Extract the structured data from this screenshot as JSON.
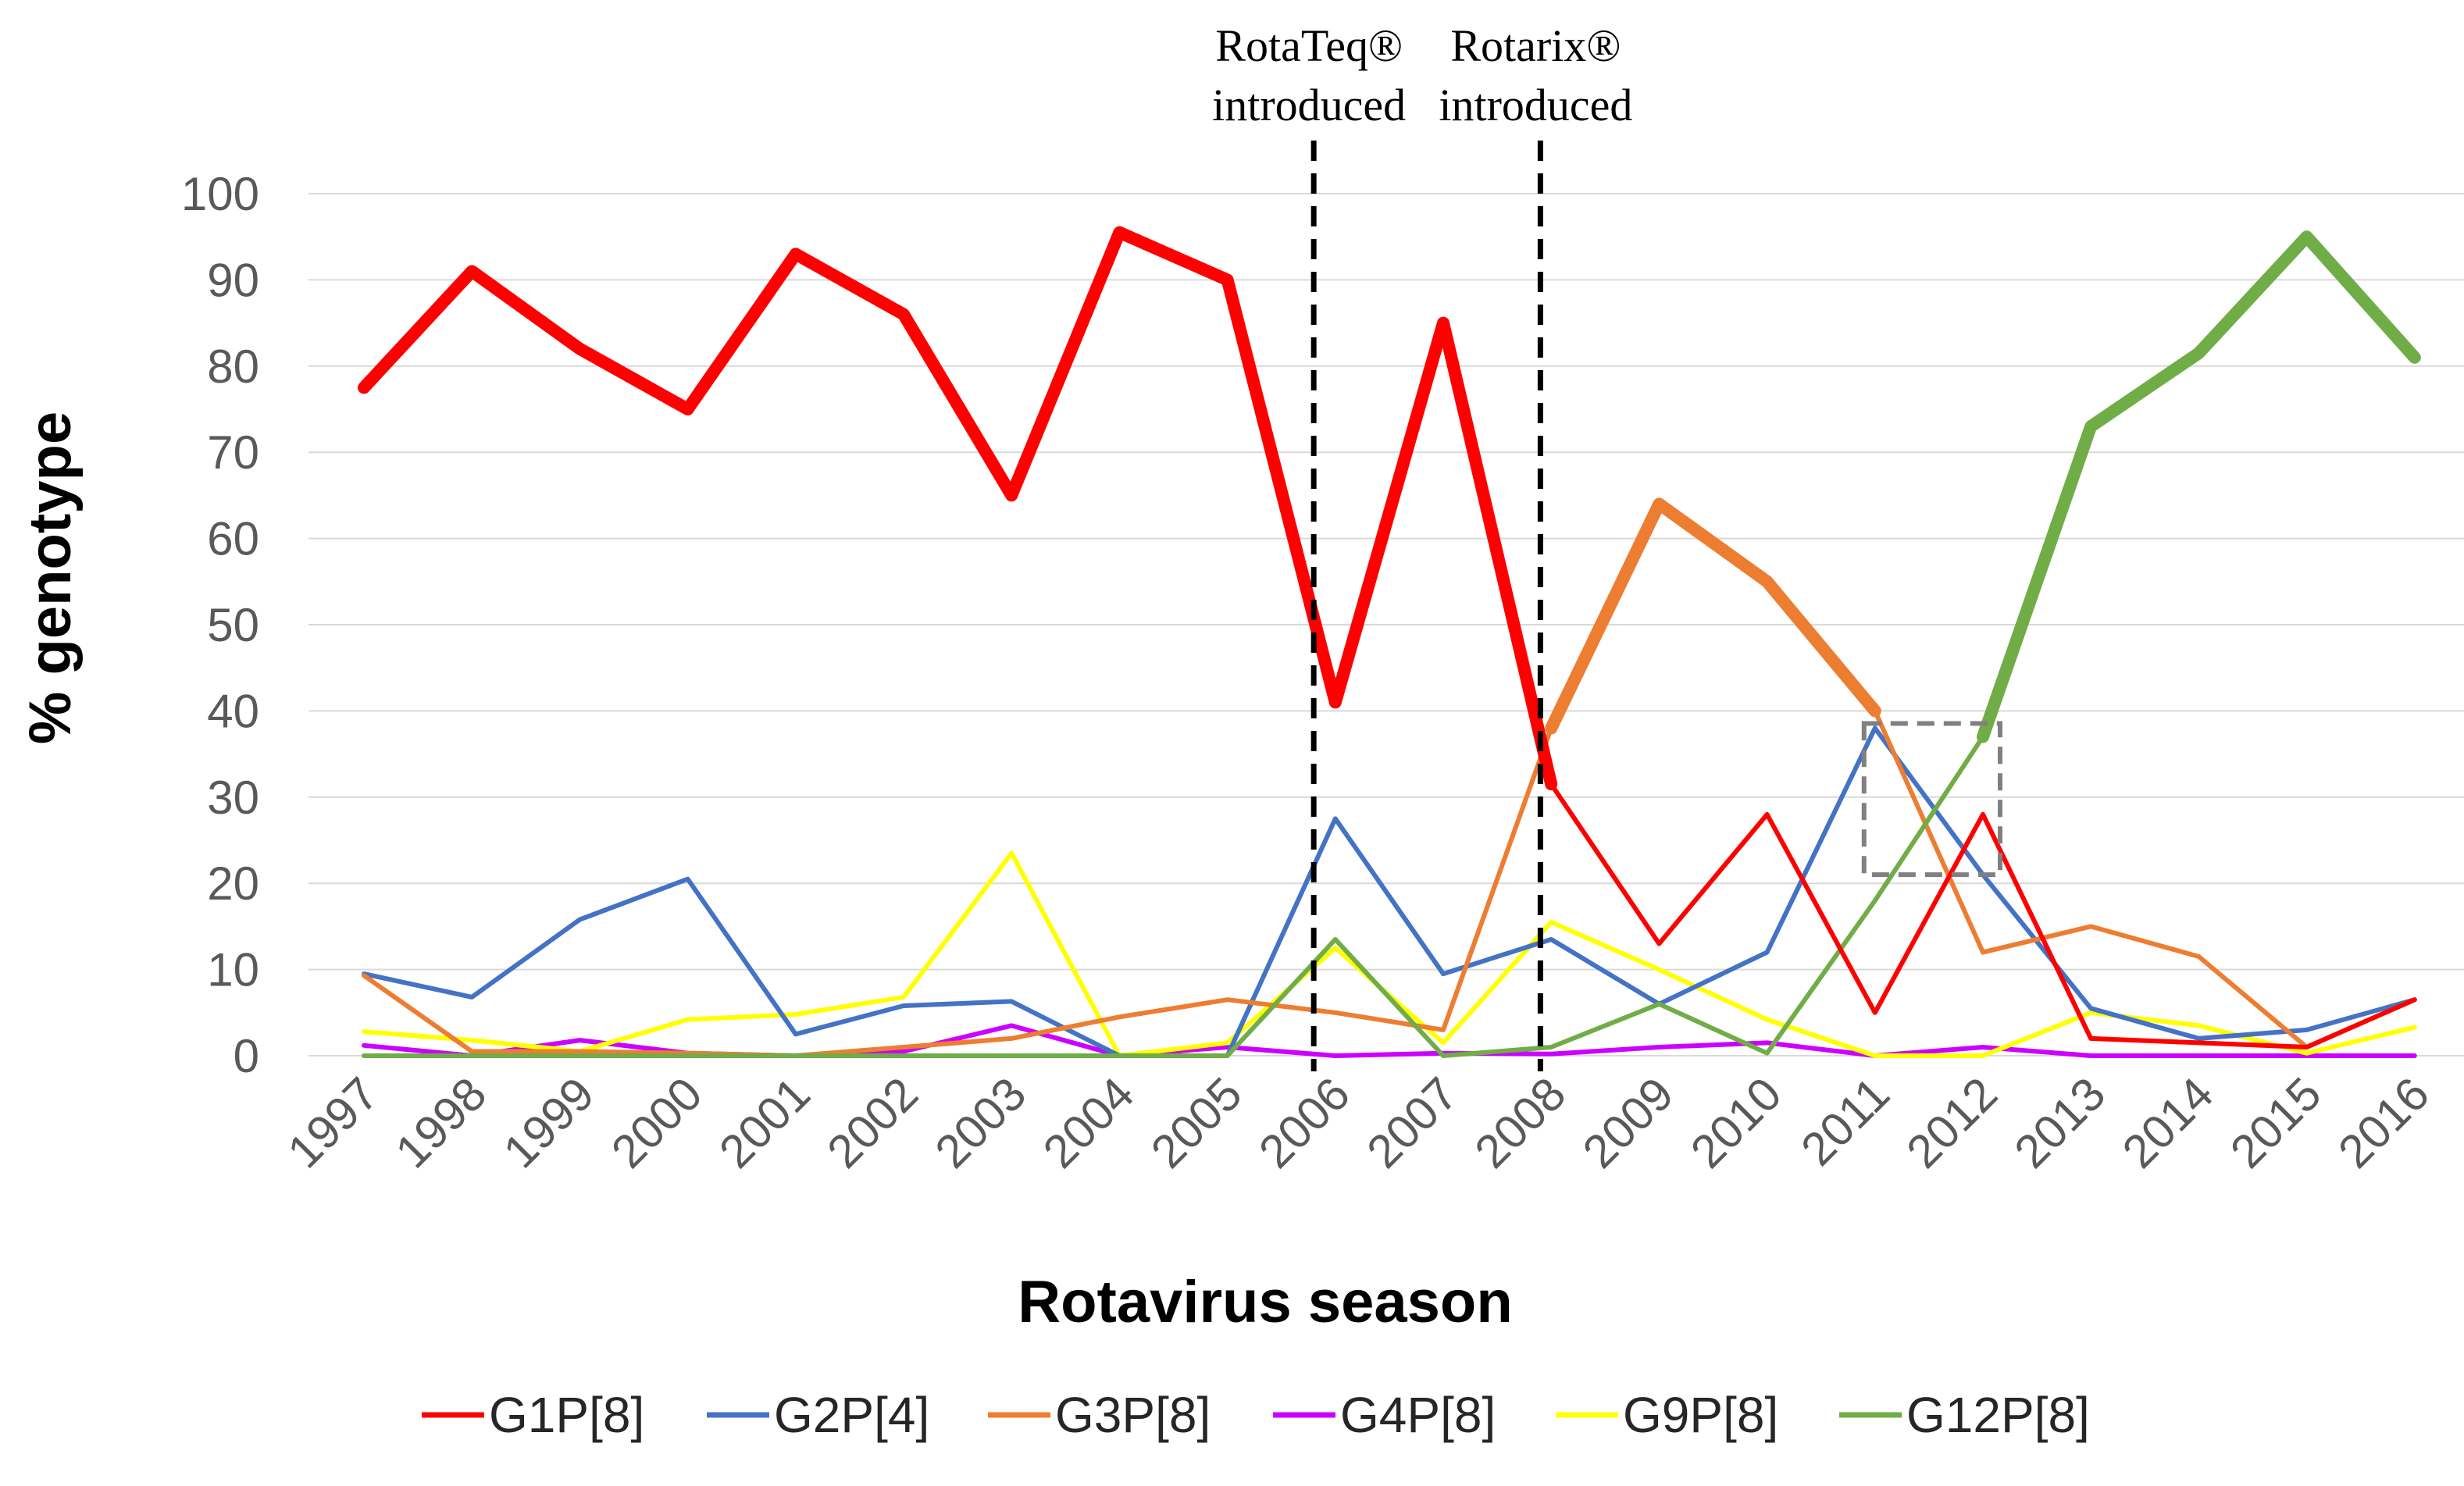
{
  "chart_data": {
    "type": "line",
    "title": "",
    "xlabel": "Rotavirus season",
    "ylabel": "% genotype",
    "ylim": [
      0,
      100
    ],
    "yticks": [
      "0",
      "10",
      "20",
      "30",
      "40",
      "50",
      "60",
      "70",
      "80",
      "90",
      "100"
    ],
    "grid": true,
    "legend_position": "bottom",
    "categories": [
      "1997",
      "1998",
      "1999",
      "2000",
      "2001",
      "2002",
      "2003",
      "2004",
      "2005",
      "2006",
      "2007",
      "2008",
      "2009",
      "2010",
      "2011",
      "2012",
      "2013",
      "2014",
      "2015",
      "2016"
    ],
    "series": [
      {
        "name": "G1P[8]",
        "color": "#FF0000",
        "values": [
          77.5,
          91,
          82,
          75,
          93,
          86,
          65,
          95.5,
          90,
          41,
          85,
          31.5,
          13,
          28,
          5,
          28,
          2,
          1.5,
          1,
          6.5
        ]
      },
      {
        "name": "G2P[4]",
        "color": "#4472C4",
        "values": [
          9.5,
          6.8,
          15.8,
          20.5,
          2.5,
          5.8,
          6.3,
          0,
          0,
          27.5,
          9.5,
          13.5,
          6,
          12,
          38,
          21,
          5.5,
          2,
          3,
          6.5
        ]
      },
      {
        "name": "G3P[8]",
        "color": "#ED7D31",
        "values": [
          9.3,
          0.5,
          0.5,
          0.3,
          0,
          1,
          2,
          4.5,
          6.5,
          5,
          3,
          38,
          64,
          55,
          40,
          12,
          15,
          11.5,
          1,
          6.5
        ]
      },
      {
        "name": "G4P[8]",
        "color": "#CC00FF",
        "values": [
          1.2,
          0,
          1.8,
          0.3,
          0,
          0.5,
          3.5,
          0,
          1,
          0,
          0.3,
          0.2,
          1,
          1.5,
          0,
          1,
          0,
          0,
          0,
          0
        ]
      },
      {
        "name": "G9P[8]",
        "color": "#FFFF00",
        "values": [
          2.8,
          1.8,
          0.5,
          4.2,
          4.8,
          6.8,
          23.5,
          0,
          1.5,
          12.5,
          1.5,
          15.5,
          10,
          4.2,
          0,
          0,
          5,
          3.5,
          0.3,
          3.3
        ]
      },
      {
        "name": "G12P[8]",
        "color": "#70AD47",
        "values": [
          0,
          0,
          0,
          0,
          0,
          0,
          0,
          0,
          0,
          13.5,
          0,
          1,
          6,
          0.3,
          18,
          37,
          73,
          81.5,
          95,
          81
        ]
      }
    ],
    "emphasis": [
      {
        "series": "G1P[8]",
        "from": "1997",
        "to": "2008"
      },
      {
        "series": "G3P[8]",
        "from": "2008",
        "to": "2011"
      },
      {
        "series": "G12P[8]",
        "from": "2012",
        "to": "2016"
      }
    ],
    "annotations": [
      {
        "type": "vline",
        "x_between": [
          "2005",
          "2006"
        ],
        "offset": 0.8,
        "text": [
          "RotaTeq®",
          "introduced"
        ]
      },
      {
        "type": "vline",
        "x_between": [
          "2007",
          "2008"
        ],
        "offset": 0.9,
        "text": [
          "Rotarix®",
          "introduced"
        ]
      },
      {
        "type": "box",
        "x_from": "2011",
        "x_to": "2012",
        "y_from": 21,
        "y_to": 38
      }
    ]
  }
}
